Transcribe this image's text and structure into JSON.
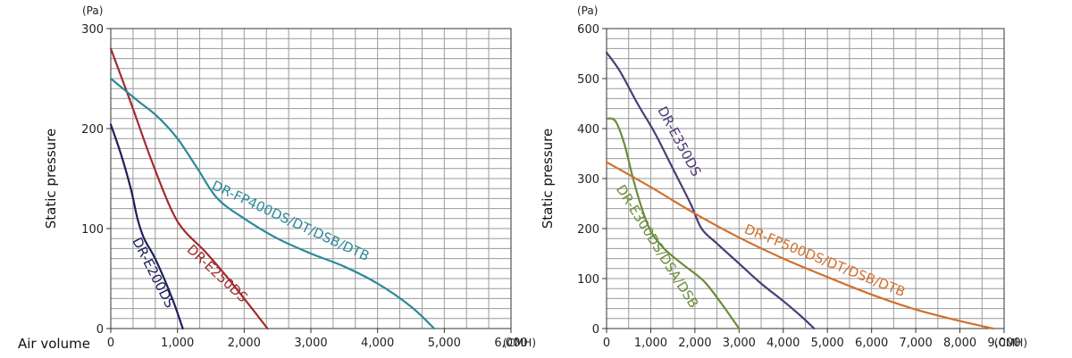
{
  "chart_data": [
    {
      "type": "line",
      "xlabel": "Air volume",
      "ylabel": "Static pressure",
      "x_unit": "(CMH)",
      "y_unit": "(Pa)",
      "xlim": [
        0,
        6000
      ],
      "ylim": [
        0,
        300
      ],
      "x_ticks": [
        0,
        1000,
        2000,
        3000,
        4000,
        5000,
        6000
      ],
      "x_tick_labels": [
        "0",
        "1,000",
        "2,000",
        "3,000",
        "4,000",
        "5,000",
        "6,000"
      ],
      "y_ticks": [
        0,
        100,
        200,
        300
      ],
      "y_tick_labels": [
        "0",
        "100",
        "200",
        "300"
      ],
      "grid": true,
      "series": [
        {
          "name": "DR-E200DS",
          "color": "#1f1f5c",
          "x": [
            0,
            150,
            300,
            400,
            500,
            650,
            800,
            950,
            1080
          ],
          "y": [
            204,
            175,
            140,
            110,
            90,
            72,
            50,
            25,
            0
          ],
          "label_at": [
            320,
            88
          ],
          "label_rotate": 63
        },
        {
          "name": "DR-E250DS",
          "color": "#a32a2f",
          "x": [
            0,
            300,
            600,
            900,
            1100,
            1400,
            1700,
            2000,
            2350
          ],
          "y": [
            280,
            226,
            170,
            120,
            98,
            78,
            55,
            30,
            0
          ],
          "label_at": [
            1130,
            78
          ],
          "label_rotate": 43
        },
        {
          "name": "DR-FP400DS/DT/DSB/DTB",
          "color": "#2b8a9a",
          "x": [
            0,
            400,
            700,
            1000,
            1300,
            1600,
            2000,
            2500,
            3000,
            3500,
            4000,
            4500,
            4850
          ],
          "y": [
            250,
            228,
            212,
            190,
            160,
            130,
            110,
            90,
            75,
            62,
            45,
            22,
            0
          ],
          "label_at": [
            1500,
            140
          ],
          "label_rotate": 25
        }
      ]
    },
    {
      "type": "line",
      "xlabel": "",
      "ylabel": "Static pressure",
      "x_unit": "(CMH)",
      "y_unit": "(Pa)",
      "xlim": [
        0,
        9000
      ],
      "ylim": [
        0,
        600
      ],
      "x_ticks": [
        0,
        1000,
        2000,
        3000,
        4000,
        5000,
        6000,
        7000,
        8000,
        9000
      ],
      "x_tick_labels": [
        "0",
        "1,000",
        "2,000",
        "3,000",
        "4,000",
        "5,000",
        "6,000",
        "7,000",
        "8,000",
        "9,000"
      ],
      "y_ticks": [
        0,
        100,
        200,
        300,
        400,
        500,
        600
      ],
      "y_tick_labels": [
        "0",
        "100",
        "200",
        "300",
        "400",
        "500",
        "600"
      ],
      "grid": true,
      "series": [
        {
          "name": "DR-E350DS",
          "color": "#4e3b78",
          "x": [
            0,
            300,
            700,
            1100,
            1500,
            1900,
            2150,
            2500,
            3000,
            3500,
            4000,
            4400,
            4700
          ],
          "y": [
            552,
            515,
            450,
            390,
            320,
            250,
            200,
            170,
            130,
            90,
            55,
            25,
            0
          ],
          "label_at": [
            1150,
            438
          ],
          "label_rotate": 62
        },
        {
          "name": "DR-E300DS/DSA/DSB",
          "color": "#6b8c3a",
          "x": [
            0,
            200,
            400,
            600,
            800,
            1000,
            1300,
            1700,
            2200,
            2600,
            3000
          ],
          "y": [
            420,
            415,
            370,
            300,
            240,
            195,
            160,
            130,
            95,
            50,
            0
          ],
          "label_at": [
            210,
            280
          ],
          "label_rotate": 58
        },
        {
          "name": "DR-FP500DS/DT/DSB/DTB",
          "color": "#d1702d",
          "x": [
            0,
            1000,
            2000,
            3000,
            4000,
            5000,
            6000,
            7000,
            8000,
            8750
          ],
          "y": [
            333,
            283,
            230,
            182,
            140,
            103,
            68,
            38,
            15,
            0
          ],
          "label_at": [
            3100,
            192
          ],
          "label_rotate": 22
        }
      ]
    }
  ]
}
